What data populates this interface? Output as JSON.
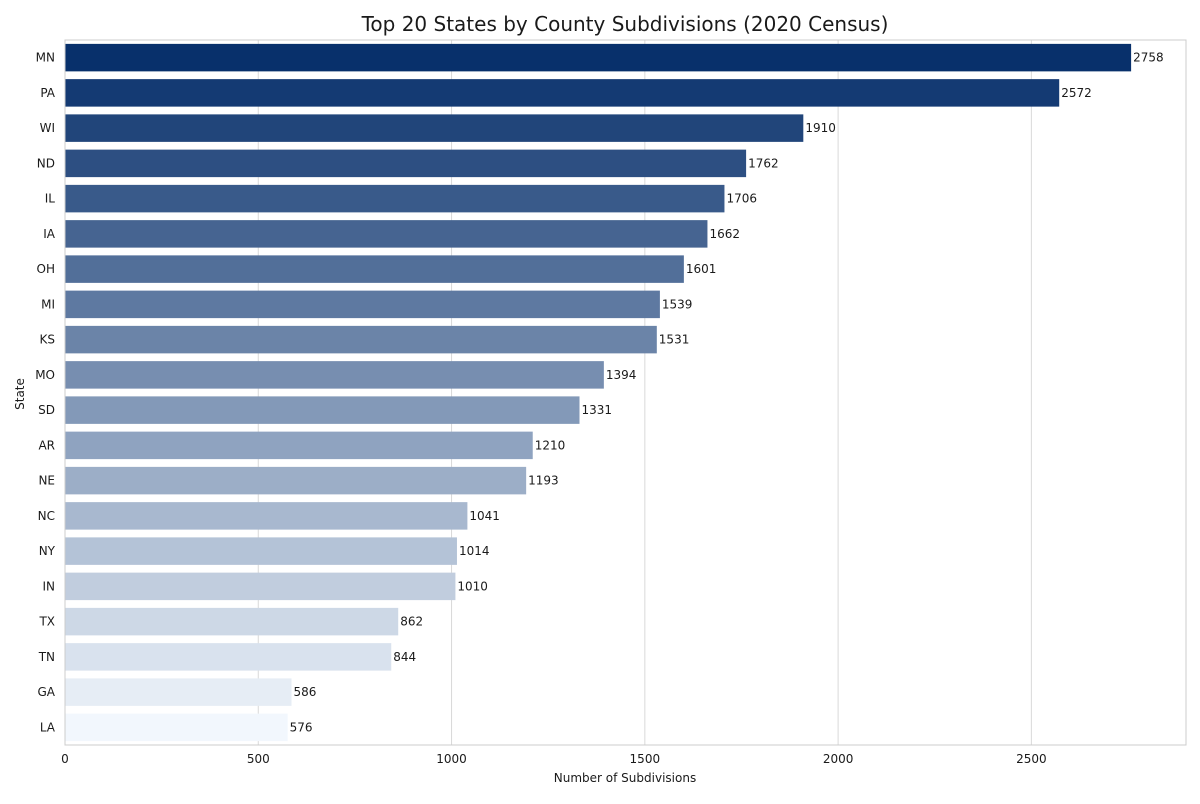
{
  "chart_data": {
    "type": "bar",
    "orientation": "horizontal",
    "title": "Top 20 States by County Subdivisions (2020 Census)",
    "xlabel": "Number of Subdivisions",
    "ylabel": "State",
    "xlim": [
      0,
      2900
    ],
    "xticks": [
      0,
      500,
      1000,
      1500,
      2000,
      2500
    ],
    "grid": true,
    "color_scale": [
      "#08306b",
      "#f2f7fd"
    ],
    "categories": [
      "MN",
      "PA",
      "WI",
      "ND",
      "IL",
      "IA",
      "OH",
      "MI",
      "KS",
      "MO",
      "SD",
      "AR",
      "NE",
      "NC",
      "NY",
      "IN",
      "TX",
      "TN",
      "GA",
      "LA"
    ],
    "values": [
      2758,
      2572,
      1910,
      1762,
      1706,
      1662,
      1601,
      1539,
      1531,
      1394,
      1331,
      1210,
      1193,
      1041,
      1014,
      1010,
      862,
      844,
      586,
      576
    ]
  }
}
